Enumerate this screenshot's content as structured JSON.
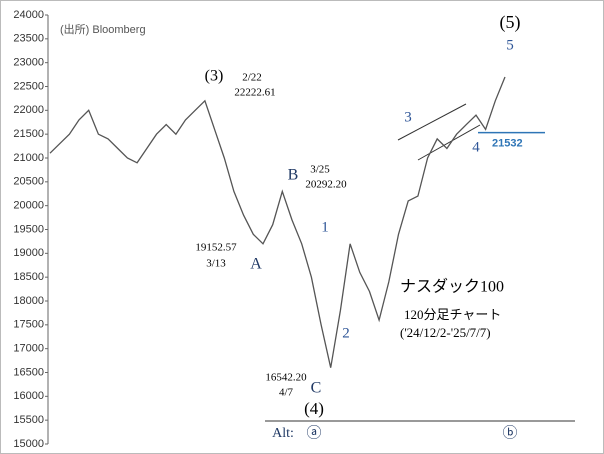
{
  "chart_data": {
    "type": "line",
    "categories": [
      null,
      null,
      null,
      null,
      null,
      null,
      null,
      null,
      null,
      null,
      null,
      null,
      null,
      null,
      null,
      null,
      null,
      null,
      null,
      null,
      null,
      null,
      null,
      null,
      null,
      null,
      null,
      null,
      null,
      null,
      null,
      null,
      null,
      null,
      null,
      null,
      null,
      null,
      null,
      null,
      null,
      null,
      null,
      null,
      null,
      null,
      null,
      null
    ],
    "values": [
      21100,
      21300,
      21500,
      21800,
      22000,
      21500,
      21400,
      21200,
      21000,
      20900,
      21200,
      21500,
      21700,
      21500,
      21800,
      22000,
      22200,
      21600,
      21000,
      20300,
      19800,
      19400,
      19200,
      19600,
      20300,
      19700,
      19200,
      18500,
      17500,
      16600,
      17800,
      19200,
      18600,
      18200,
      17600,
      18400,
      19400,
      20100,
      20200,
      21000,
      21400,
      21200,
      21500,
      21700,
      21900,
      21600,
      22200,
      22700
    ],
    "color": "#555555",
    "ylim": [
      15000,
      24000
    ],
    "yticks": [
      15000,
      15500,
      16000,
      16500,
      17000,
      17500,
      18000,
      18500,
      19000,
      19500,
      20000,
      20500,
      21000,
      21500,
      22000,
      22500,
      23000,
      23500,
      24000
    ],
    "level": 21532,
    "level_color": "#2e75b6",
    "annotations": [
      "(出所) Bloomberg",
      "(3)",
      "2/22",
      "22222.61",
      "B",
      "3/25",
      "20292.20",
      "19152.57",
      "3/13",
      "A",
      "1",
      "2",
      "16542.20",
      "4/7",
      "C",
      "(4)",
      "(5)",
      "5",
      "3",
      "4",
      "ナスダック100",
      "120分足チャート",
      "('24/12/2-'25/7/7)",
      "Alt:",
      "ⓐ",
      "ⓑ"
    ]
  }
}
